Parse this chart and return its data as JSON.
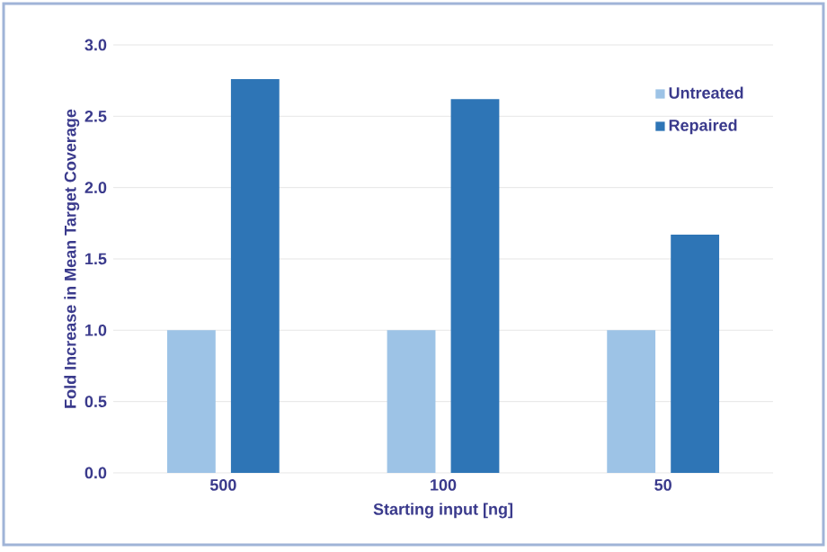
{
  "chart_data": {
    "type": "bar",
    "xlabel": "Starting input [ng]",
    "ylabel": "Fold Increase in Mean Target Coverage",
    "categories": [
      "500",
      "100",
      "50"
    ],
    "series": [
      {
        "name": "Untreated",
        "color": "#9dc3e6",
        "values": [
          1.0,
          1.0,
          1.0
        ]
      },
      {
        "name": "Repaired",
        "color": "#2e75b6",
        "values": [
          2.76,
          2.62,
          1.67
        ]
      }
    ],
    "ylim": [
      0,
      3
    ],
    "yticks": [
      {
        "value": 0,
        "label": "0.0"
      },
      {
        "value": 0.5,
        "label": "0.5"
      },
      {
        "value": 1,
        "label": "1.0"
      },
      {
        "value": 1.5,
        "label": "1.5"
      },
      {
        "value": 2,
        "label": "2.0"
      },
      {
        "value": 2.5,
        "label": "2.5"
      },
      {
        "value": 3,
        "label": "3.0"
      }
    ],
    "grid": "y",
    "legend": "top right"
  }
}
